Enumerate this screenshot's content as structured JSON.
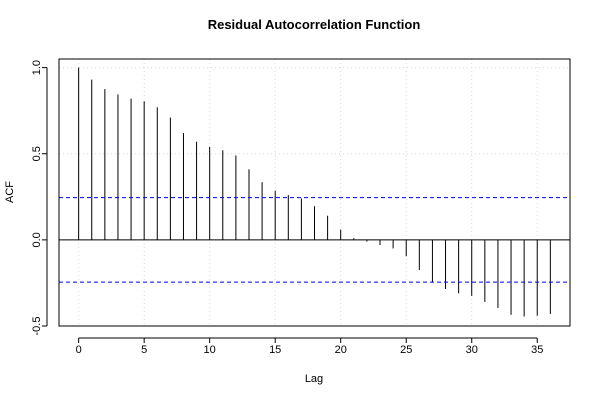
{
  "chart_data": {
    "type": "bar",
    "title": "Residual Autocorrelation Function",
    "xlabel": "Lag",
    "ylabel": "ACF",
    "xlim": [
      -1.5,
      37.5
    ],
    "ylim": [
      -0.5,
      1.05
    ],
    "x_ticks": [
      0,
      5,
      10,
      15,
      20,
      25,
      30,
      35
    ],
    "x_tick_labels": [
      "0",
      "5",
      "10",
      "15",
      "20",
      "25",
      "30",
      "35"
    ],
    "y_ticks": [
      -0.5,
      0.0,
      0.5,
      1.0
    ],
    "y_tick_labels": [
      "-0.5",
      "0.0",
      "0.5",
      "1.0"
    ],
    "grid": true,
    "lags": [
      0,
      1,
      2,
      3,
      4,
      5,
      6,
      7,
      8,
      9,
      10,
      11,
      12,
      13,
      14,
      15,
      16,
      17,
      18,
      19,
      20,
      21,
      22,
      23,
      24,
      25,
      26,
      27,
      28,
      29,
      30,
      31,
      32,
      33,
      34,
      35,
      36
    ],
    "acf": [
      1.0,
      0.93,
      0.875,
      0.845,
      0.82,
      0.805,
      0.77,
      0.71,
      0.62,
      0.57,
      0.54,
      0.52,
      0.49,
      0.41,
      0.335,
      0.285,
      0.26,
      0.24,
      0.195,
      0.14,
      0.06,
      0.01,
      -0.01,
      -0.03,
      -0.05,
      -0.095,
      -0.175,
      -0.245,
      -0.285,
      -0.31,
      -0.325,
      -0.36,
      -0.395,
      -0.435,
      -0.445,
      -0.44,
      -0.43
    ],
    "confidence_limits": [
      0.245,
      -0.245
    ],
    "confidence_color": "#0000ff"
  }
}
